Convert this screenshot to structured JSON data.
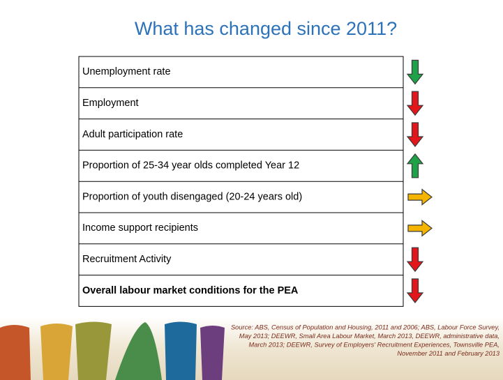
{
  "title": "What has changed since 2011?",
  "table": {
    "rows": [
      {
        "label": "Unemployment rate",
        "arrow": "down",
        "color": "#1fa247"
      },
      {
        "label": "Employment",
        "arrow": "down",
        "color": "#e3161b"
      },
      {
        "label": "Adult participation rate",
        "arrow": "down",
        "color": "#e3161b"
      },
      {
        "label": "Proportion of 25-34 year olds completed Year 12",
        "arrow": "up",
        "color": "#1fa247"
      },
      {
        "label": "Proportion of youth disengaged (20-24 years old)",
        "arrow": "right",
        "color": "#f5b400"
      },
      {
        "label": "Income support recipients",
        "arrow": "right",
        "color": "#f5b400"
      },
      {
        "label": "Recruitment Activity",
        "arrow": "down",
        "color": "#e3161b"
      },
      {
        "label": "Overall labour market conditions for the PEA",
        "arrow": "down",
        "color": "#e3161b",
        "bold": true
      }
    ]
  },
  "source": [
    "Source: ABS, Census of Population and Housing, 2011 and 2006; ABS, Labour Force Survey,",
    "May 2013; DEEWR, Small Area Labour Market, March 2013, DEEWR, administrative data,",
    "March 2013; DEEWR, Survey of Employers' Recruitment Experiences, Townsville PEA,",
    "November 2011 and February 2013"
  ]
}
